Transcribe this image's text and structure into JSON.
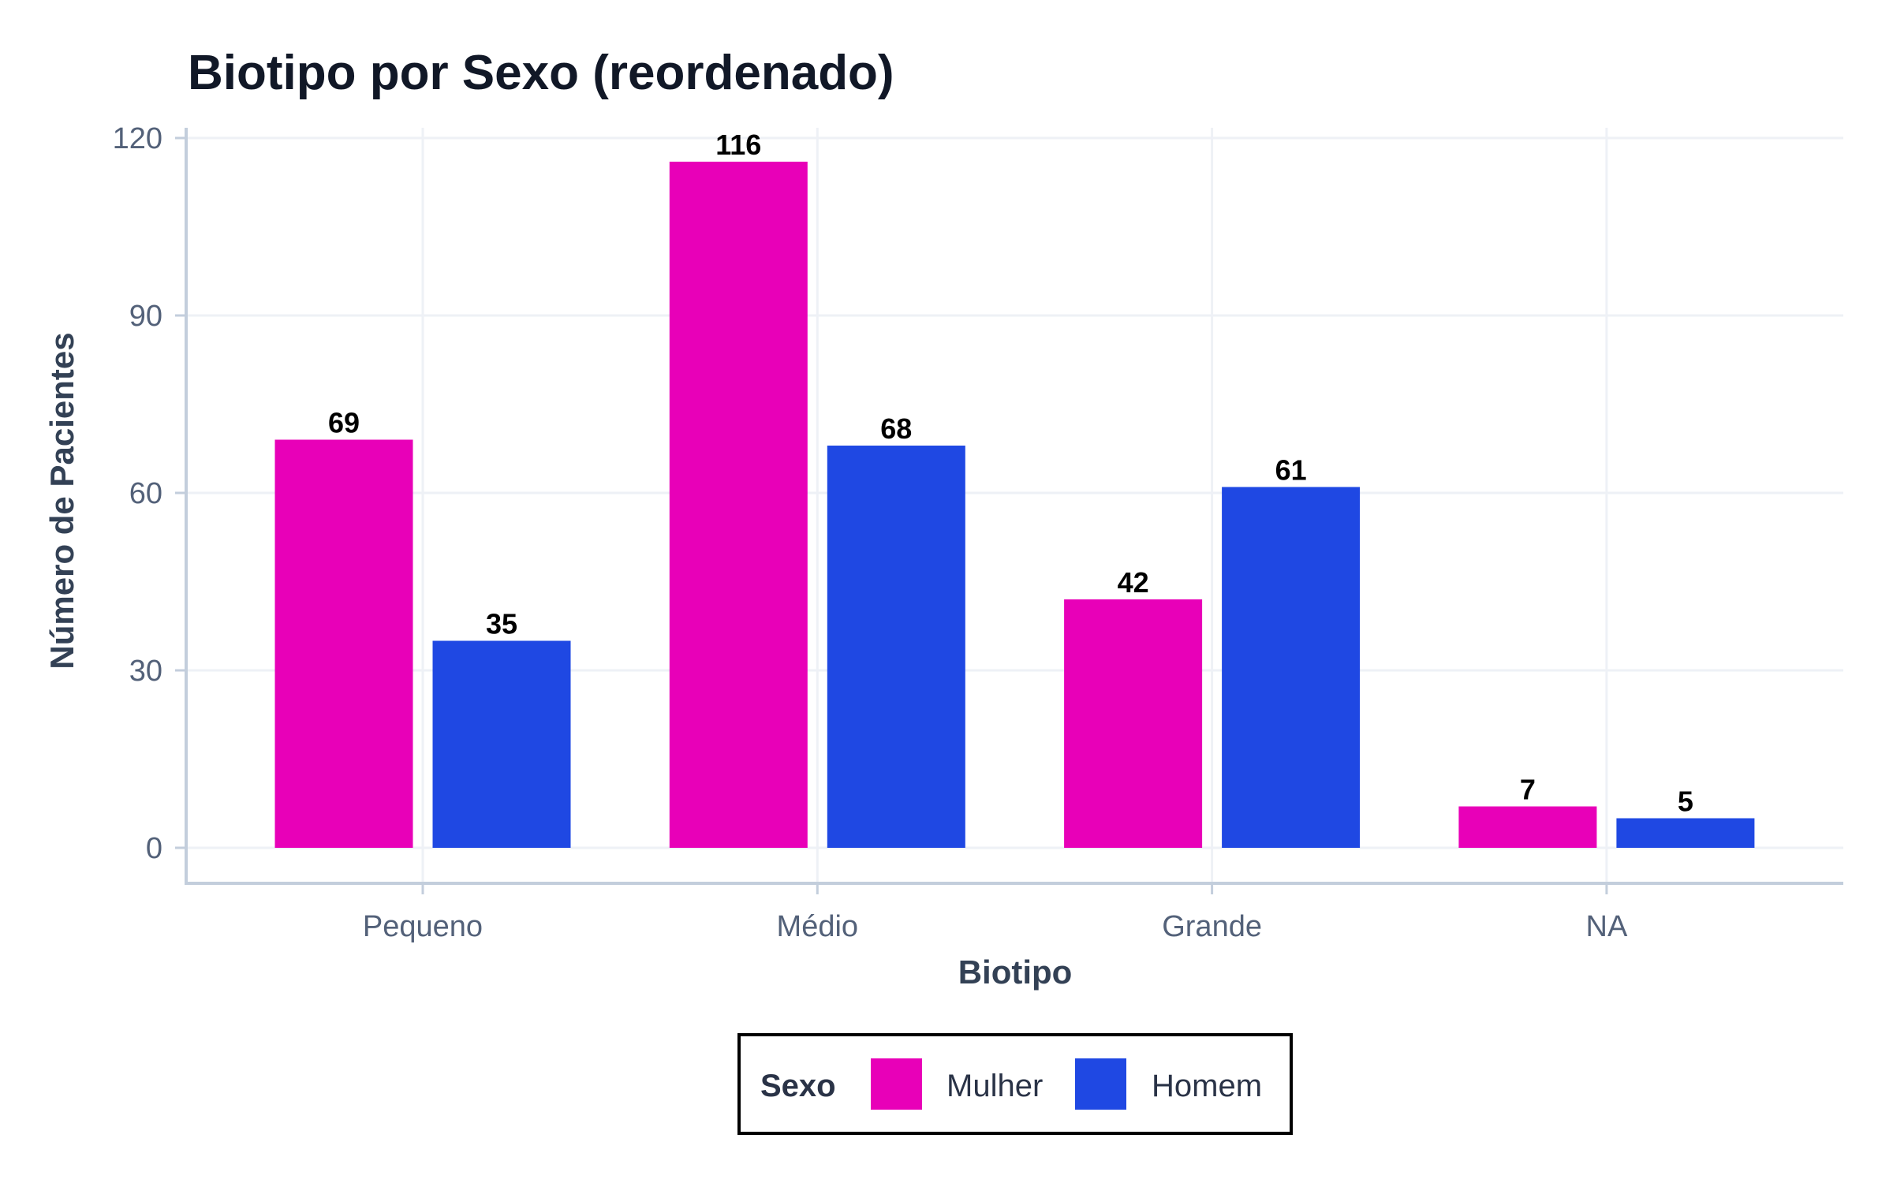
{
  "chart_data": {
    "type": "bar",
    "title": "Biotipo por Sexo (reordenado)",
    "xlabel": "Biotipo",
    "ylabel": "Número de Pacientes",
    "categories": [
      "Pequeno",
      "Médio",
      "Grande",
      "NA"
    ],
    "series": [
      {
        "name": "Mulher",
        "color": "#E800B8",
        "values": [
          69,
          116,
          42,
          7
        ]
      },
      {
        "name": "Homem",
        "color": "#1F48E3",
        "values": [
          35,
          68,
          61,
          5
        ]
      }
    ],
    "yticks": [
      "0",
      "30",
      "60",
      "90",
      "120"
    ],
    "ylim": [
      0,
      120
    ],
    "grid": true,
    "legend": {
      "title": "Sexo",
      "position": "bottom"
    }
  }
}
